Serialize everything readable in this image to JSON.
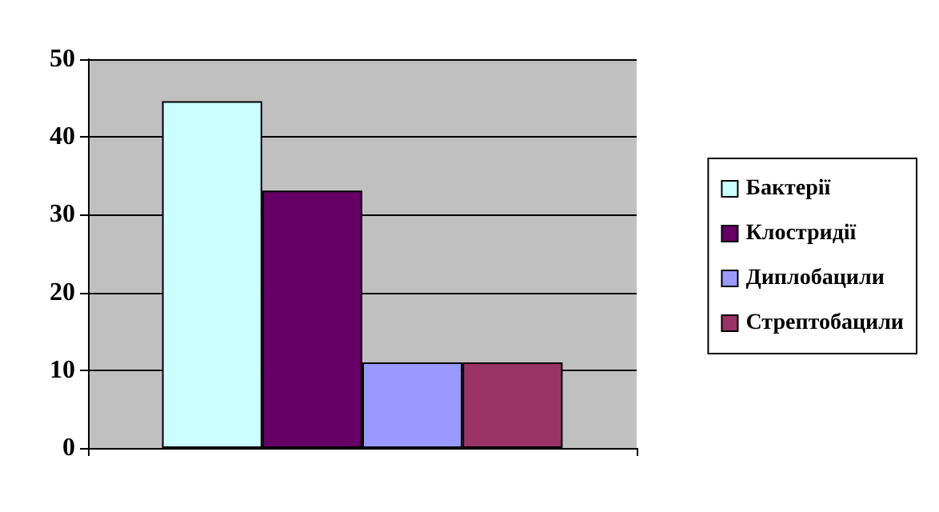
{
  "chart_data": {
    "type": "bar",
    "categories": [
      null
    ],
    "series": [
      {
        "name": "Бактерії",
        "color": "#ccffff",
        "values": [
          44.6
        ]
      },
      {
        "name": "Клостридії",
        "color": "#660066",
        "values": [
          33.1
        ]
      },
      {
        "name": "Диплобацили",
        "color": "#9999ff",
        "values": [
          11
        ]
      },
      {
        "name": "Стрептобацили",
        "color": "#993366",
        "values": [
          11
        ]
      }
    ],
    "ylim": [
      0,
      50
    ],
    "yticks": [
      0,
      10,
      20,
      30,
      40,
      50
    ],
    "grid": "y",
    "legend": "right"
  }
}
